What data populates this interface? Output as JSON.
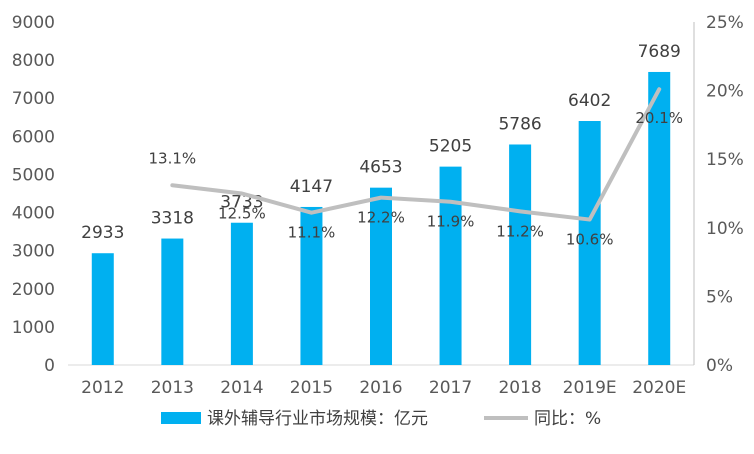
{
  "chart_data": {
    "type": "bar",
    "categories": [
      "2012",
      "2013",
      "2014",
      "2015",
      "2016",
      "2017",
      "2018",
      "2019E",
      "2020E"
    ],
    "series": [
      {
        "name": "课外辅导行业市场规模：亿元",
        "type": "bar",
        "axis": "left",
        "color": "#00b0f0",
        "values": [
          2933,
          3318,
          3733,
          4147,
          4653,
          5205,
          5786,
          6402,
          7689
        ],
        "labels": [
          "2933",
          "3318",
          "3733",
          "4147",
          "4653",
          "5205",
          "5786",
          "6402",
          "7689"
        ]
      },
      {
        "name": "同比：%",
        "type": "line",
        "axis": "right",
        "color": "#bfbfbf",
        "values": [
          null,
          13.1,
          12.5,
          11.1,
          12.2,
          11.9,
          11.2,
          10.6,
          20.1
        ],
        "labels": [
          "",
          "13.1%",
          "12.5%",
          "11.1%",
          "12.2%",
          "11.9%",
          "11.2%",
          "10.6%",
          "20.1%"
        ]
      }
    ],
    "y_left": {
      "lim": [
        0,
        9000
      ],
      "ticks": [
        0,
        1000,
        2000,
        3000,
        4000,
        5000,
        6000,
        7000,
        8000,
        9000
      ],
      "tick_labels": [
        "0",
        "1000",
        "2000",
        "3000",
        "4000",
        "5000",
        "6000",
        "7000",
        "8000",
        "9000"
      ]
    },
    "y_right": {
      "lim": [
        0,
        25
      ],
      "ticks": [
        0,
        5,
        10,
        15,
        20,
        25
      ],
      "tick_labels": [
        "0%",
        "5%",
        "10%",
        "15%",
        "20%",
        "25%"
      ]
    },
    "grid": false,
    "legend_position": "bottom"
  }
}
